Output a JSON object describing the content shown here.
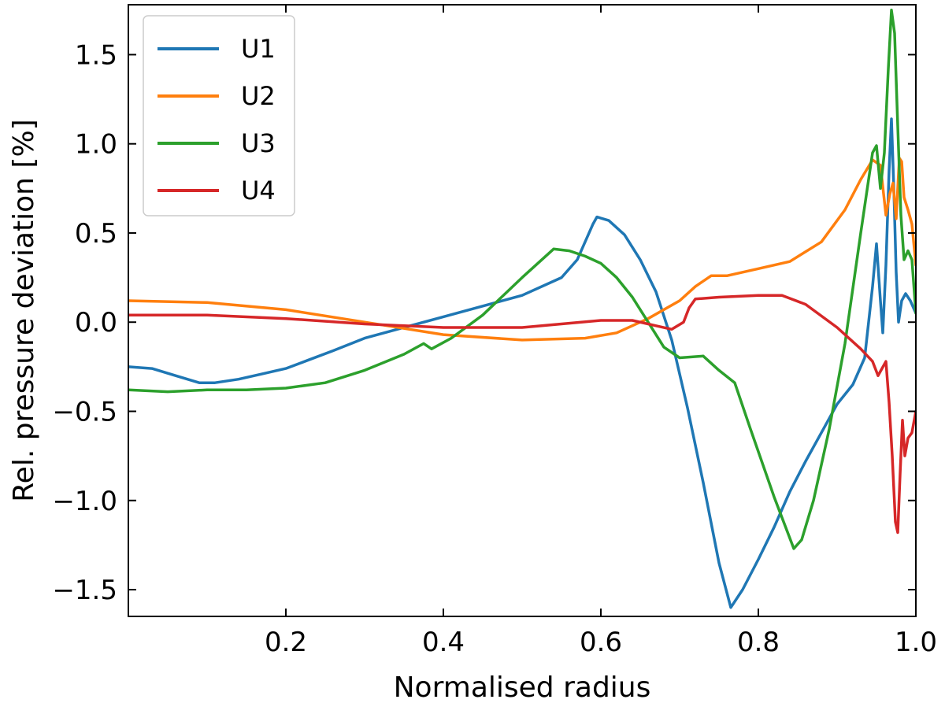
{
  "chart_data": {
    "type": "line",
    "xlabel": "Normalised radius",
    "ylabel": "Rel. pressure deviation [%]",
    "xlim": [
      0.0,
      1.0
    ],
    "ylim": [
      -1.65,
      1.78
    ],
    "x_ticks": [
      0.2,
      0.4,
      0.6,
      0.8,
      1.0
    ],
    "x_tick_labels": [
      "0.2",
      "0.4",
      "0.6",
      "0.8",
      "1.0"
    ],
    "y_ticks": [
      -1.5,
      -1.0,
      -0.5,
      0.0,
      0.5,
      1.0,
      1.5
    ],
    "y_tick_labels": [
      "−1.5",
      "−1.0",
      "−0.5",
      "0.0",
      "0.5",
      "1.0",
      "1.5"
    ],
    "grid": false,
    "legend_position": "top-left",
    "series": [
      {
        "name": "U1",
        "color": "#1f77b4",
        "points": [
          [
            0.0,
            -0.25
          ],
          [
            0.03,
            -0.26
          ],
          [
            0.06,
            -0.3
          ],
          [
            0.09,
            -0.34
          ],
          [
            0.11,
            -0.34
          ],
          [
            0.14,
            -0.32
          ],
          [
            0.17,
            -0.29
          ],
          [
            0.2,
            -0.26
          ],
          [
            0.23,
            -0.21
          ],
          [
            0.26,
            -0.16
          ],
          [
            0.3,
            -0.09
          ],
          [
            0.35,
            -0.03
          ],
          [
            0.4,
            0.03
          ],
          [
            0.45,
            0.09
          ],
          [
            0.5,
            0.15
          ],
          [
            0.55,
            0.25
          ],
          [
            0.57,
            0.35
          ],
          [
            0.59,
            0.55
          ],
          [
            0.595,
            0.59
          ],
          [
            0.61,
            0.57
          ],
          [
            0.63,
            0.49
          ],
          [
            0.65,
            0.35
          ],
          [
            0.67,
            0.17
          ],
          [
            0.69,
            -0.1
          ],
          [
            0.71,
            -0.48
          ],
          [
            0.73,
            -0.9
          ],
          [
            0.75,
            -1.35
          ],
          [
            0.765,
            -1.6
          ],
          [
            0.78,
            -1.5
          ],
          [
            0.8,
            -1.33
          ],
          [
            0.82,
            -1.15
          ],
          [
            0.84,
            -0.95
          ],
          [
            0.86,
            -0.78
          ],
          [
            0.88,
            -0.62
          ],
          [
            0.9,
            -0.46
          ],
          [
            0.92,
            -0.35
          ],
          [
            0.935,
            -0.2
          ],
          [
            0.945,
            0.2
          ],
          [
            0.95,
            0.44
          ],
          [
            0.955,
            0.12
          ],
          [
            0.958,
            -0.06
          ],
          [
            0.962,
            0.32
          ],
          [
            0.966,
            0.85
          ],
          [
            0.969,
            1.14
          ],
          [
            0.972,
            0.75
          ],
          [
            0.975,
            0.28
          ],
          [
            0.978,
            0.0
          ],
          [
            0.982,
            0.12
          ],
          [
            0.987,
            0.16
          ],
          [
            0.993,
            0.12
          ],
          [
            1.0,
            0.05
          ]
        ]
      },
      {
        "name": "U2",
        "color": "#ff7f0e",
        "points": [
          [
            0.0,
            0.12
          ],
          [
            0.1,
            0.11
          ],
          [
            0.2,
            0.07
          ],
          [
            0.3,
            0.0
          ],
          [
            0.4,
            -0.07
          ],
          [
            0.5,
            -0.1
          ],
          [
            0.58,
            -0.09
          ],
          [
            0.62,
            -0.06
          ],
          [
            0.66,
            0.02
          ],
          [
            0.7,
            0.12
          ],
          [
            0.72,
            0.2
          ],
          [
            0.74,
            0.26
          ],
          [
            0.76,
            0.26
          ],
          [
            0.8,
            0.3
          ],
          [
            0.84,
            0.34
          ],
          [
            0.88,
            0.45
          ],
          [
            0.91,
            0.63
          ],
          [
            0.93,
            0.8
          ],
          [
            0.945,
            0.91
          ],
          [
            0.955,
            0.88
          ],
          [
            0.962,
            0.6
          ],
          [
            0.967,
            0.72
          ],
          [
            0.971,
            0.78
          ],
          [
            0.975,
            0.58
          ],
          [
            0.979,
            0.92
          ],
          [
            0.982,
            0.9
          ],
          [
            0.985,
            0.7
          ],
          [
            0.99,
            0.63
          ],
          [
            0.995,
            0.55
          ],
          [
            1.0,
            0.32
          ]
        ]
      },
      {
        "name": "U3",
        "color": "#2ca02c",
        "points": [
          [
            0.0,
            -0.38
          ],
          [
            0.05,
            -0.39
          ],
          [
            0.1,
            -0.38
          ],
          [
            0.15,
            -0.38
          ],
          [
            0.2,
            -0.37
          ],
          [
            0.25,
            -0.34
          ],
          [
            0.3,
            -0.27
          ],
          [
            0.35,
            -0.18
          ],
          [
            0.375,
            -0.12
          ],
          [
            0.385,
            -0.15
          ],
          [
            0.41,
            -0.09
          ],
          [
            0.45,
            0.04
          ],
          [
            0.5,
            0.25
          ],
          [
            0.54,
            0.41
          ],
          [
            0.56,
            0.4
          ],
          [
            0.58,
            0.37
          ],
          [
            0.6,
            0.33
          ],
          [
            0.62,
            0.25
          ],
          [
            0.64,
            0.14
          ],
          [
            0.66,
            0.0
          ],
          [
            0.68,
            -0.14
          ],
          [
            0.7,
            -0.2
          ],
          [
            0.73,
            -0.19
          ],
          [
            0.75,
            -0.27
          ],
          [
            0.77,
            -0.34
          ],
          [
            0.79,
            -0.6
          ],
          [
            0.82,
            -0.98
          ],
          [
            0.845,
            -1.27
          ],
          [
            0.855,
            -1.22
          ],
          [
            0.87,
            -1.0
          ],
          [
            0.89,
            -0.6
          ],
          [
            0.91,
            -0.12
          ],
          [
            0.93,
            0.5
          ],
          [
            0.945,
            0.95
          ],
          [
            0.95,
            0.99
          ],
          [
            0.955,
            0.75
          ],
          [
            0.96,
            0.95
          ],
          [
            0.965,
            1.42
          ],
          [
            0.969,
            1.75
          ],
          [
            0.973,
            1.62
          ],
          [
            0.977,
            1.1
          ],
          [
            0.981,
            0.6
          ],
          [
            0.985,
            0.35
          ],
          [
            0.99,
            0.4
          ],
          [
            0.995,
            0.35
          ],
          [
            1.0,
            0.05
          ]
        ]
      },
      {
        "name": "U4",
        "color": "#d62728",
        "points": [
          [
            0.0,
            0.04
          ],
          [
            0.1,
            0.04
          ],
          [
            0.2,
            0.02
          ],
          [
            0.3,
            -0.01
          ],
          [
            0.4,
            -0.03
          ],
          [
            0.5,
            -0.03
          ],
          [
            0.6,
            0.01
          ],
          [
            0.64,
            0.01
          ],
          [
            0.67,
            -0.02
          ],
          [
            0.69,
            -0.04
          ],
          [
            0.705,
            0.0
          ],
          [
            0.712,
            0.08
          ],
          [
            0.72,
            0.13
          ],
          [
            0.75,
            0.14
          ],
          [
            0.8,
            0.15
          ],
          [
            0.83,
            0.15
          ],
          [
            0.86,
            0.1
          ],
          [
            0.9,
            -0.03
          ],
          [
            0.93,
            -0.15
          ],
          [
            0.945,
            -0.22
          ],
          [
            0.952,
            -0.3
          ],
          [
            0.957,
            -0.26
          ],
          [
            0.962,
            -0.22
          ],
          [
            0.966,
            -0.45
          ],
          [
            0.97,
            -0.75
          ],
          [
            0.974,
            -1.12
          ],
          [
            0.977,
            -1.18
          ],
          [
            0.98,
            -0.85
          ],
          [
            0.983,
            -0.55
          ],
          [
            0.986,
            -0.75
          ],
          [
            0.99,
            -0.65
          ],
          [
            0.995,
            -0.62
          ],
          [
            1.0,
            -0.5
          ]
        ]
      }
    ]
  }
}
